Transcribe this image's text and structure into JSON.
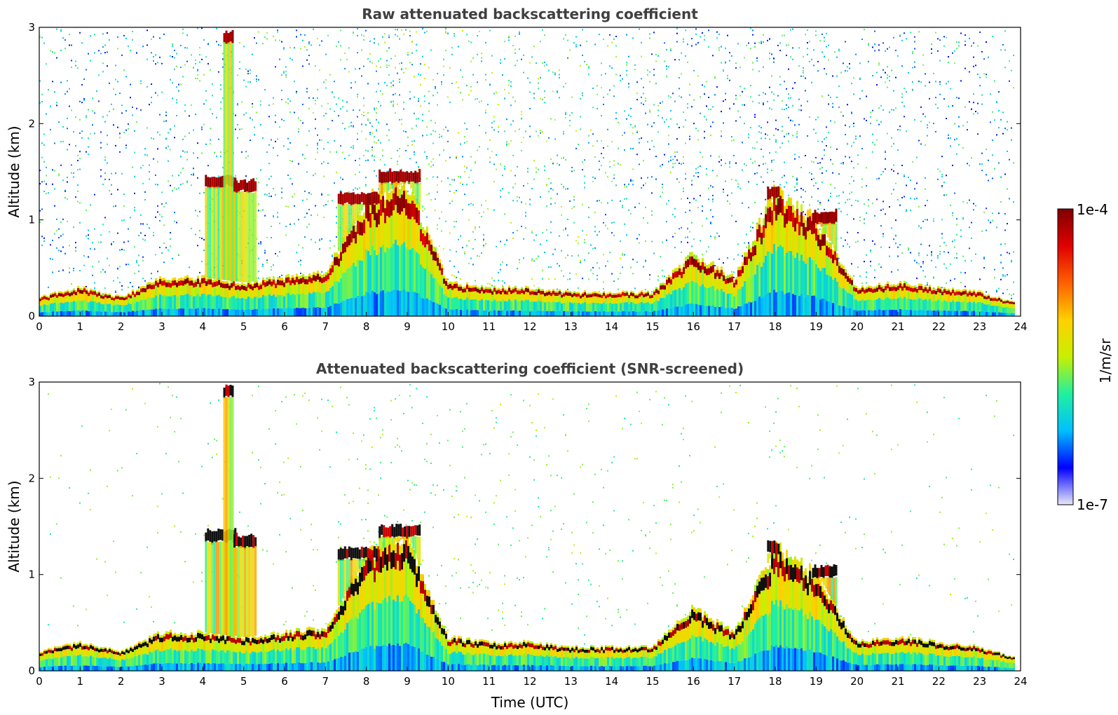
{
  "chart_data": [
    {
      "type": "heatmap",
      "title": "Raw attenuated backscattering coefficient",
      "xlabel": "",
      "ylabel": "Altitude (km)",
      "xlim": [
        0,
        24
      ],
      "ylim": [
        0,
        3
      ],
      "xticks": [
        "0",
        "1",
        "2",
        "3",
        "4",
        "5",
        "6",
        "7",
        "8",
        "9",
        "10",
        "11",
        "12",
        "13",
        "14",
        "15",
        "16",
        "17",
        "18",
        "19",
        "20",
        "21",
        "22",
        "23",
        "24"
      ],
      "yticks": [
        "0",
        "1",
        "2",
        "3"
      ],
      "screening": "none",
      "boundary_layer_top_km": {
        "time_utc": [
          0,
          1,
          2,
          3,
          4,
          5,
          6,
          7,
          8,
          9,
          10,
          11,
          12,
          13,
          14,
          15,
          16,
          17,
          18,
          19,
          20,
          21,
          22,
          23,
          23.8
        ],
        "altitude_km": [
          0.2,
          0.3,
          0.2,
          0.4,
          0.4,
          0.35,
          0.4,
          0.45,
          1.2,
          1.4,
          0.35,
          0.3,
          0.3,
          0.25,
          0.25,
          0.25,
          0.65,
          0.4,
          1.3,
          1.0,
          0.3,
          0.35,
          0.3,
          0.25,
          0.15
        ]
      },
      "cloud_layers": [
        {
          "start_utc": 4.05,
          "end_utc": 4.8,
          "altitude_km": 1.4
        },
        {
          "start_utc": 4.5,
          "end_utc": 4.75,
          "altitude_km": 2.9
        },
        {
          "start_utc": 4.75,
          "end_utc": 5.3,
          "altitude_km": 1.35
        },
        {
          "start_utc": 7.3,
          "end_utc": 8.3,
          "altitude_km": 1.22
        },
        {
          "start_utc": 8.3,
          "end_utc": 9.3,
          "altitude_km": 1.45
        },
        {
          "start_utc": 17.8,
          "end_utc": 18.1,
          "altitude_km": 1.28
        },
        {
          "start_utc": 18.9,
          "end_utc": 19.5,
          "altitude_km": 1.03
        }
      ]
    },
    {
      "type": "heatmap",
      "title": "Attenuated backscattering coefficient (SNR-screened)",
      "xlabel": "Time (UTC)",
      "ylabel": "Altitude (km)",
      "xlim": [
        0,
        24
      ],
      "ylim": [
        0,
        3
      ],
      "xticks": [
        "0",
        "1",
        "2",
        "3",
        "4",
        "5",
        "6",
        "7",
        "8",
        "9",
        "10",
        "11",
        "12",
        "13",
        "14",
        "15",
        "16",
        "17",
        "18",
        "19",
        "20",
        "21",
        "22",
        "23",
        "24"
      ],
      "yticks": [
        "0",
        "1",
        "2",
        "3"
      ],
      "screening": "SNR",
      "boundary_layer_top_km": {
        "time_utc": [
          0,
          1,
          2,
          3,
          4,
          5,
          6,
          7,
          8,
          9,
          10,
          11,
          12,
          13,
          14,
          15,
          16,
          17,
          18,
          19,
          20,
          21,
          22,
          23,
          23.8
        ],
        "altitude_km": [
          0.2,
          0.3,
          0.2,
          0.4,
          0.4,
          0.35,
          0.4,
          0.45,
          1.2,
          1.4,
          0.35,
          0.3,
          0.3,
          0.25,
          0.25,
          0.25,
          0.65,
          0.4,
          1.3,
          1.0,
          0.3,
          0.35,
          0.3,
          0.25,
          0.15
        ]
      },
      "cloud_layers": [
        {
          "start_utc": 4.05,
          "end_utc": 4.8,
          "altitude_km": 1.4
        },
        {
          "start_utc": 4.5,
          "end_utc": 4.75,
          "altitude_km": 2.9
        },
        {
          "start_utc": 4.75,
          "end_utc": 5.3,
          "altitude_km": 1.35
        },
        {
          "start_utc": 7.3,
          "end_utc": 8.3,
          "altitude_km": 1.22
        },
        {
          "start_utc": 8.3,
          "end_utc": 9.3,
          "altitude_km": 1.45
        },
        {
          "start_utc": 17.8,
          "end_utc": 18.1,
          "altitude_km": 1.28
        },
        {
          "start_utc": 18.9,
          "end_utc": 19.5,
          "altitude_km": 1.03
        }
      ]
    }
  ],
  "colorbar": {
    "label": "1/m/sr",
    "min_label": "1e-7",
    "max_label": "1e-4",
    "scale": "log",
    "colormap": "jet",
    "colors": [
      "#e8e8f8",
      "#0000ff",
      "#00bfff",
      "#20f0a0",
      "#c8f000",
      "#ffd000",
      "#ff6000",
      "#e00000",
      "#800000"
    ]
  }
}
